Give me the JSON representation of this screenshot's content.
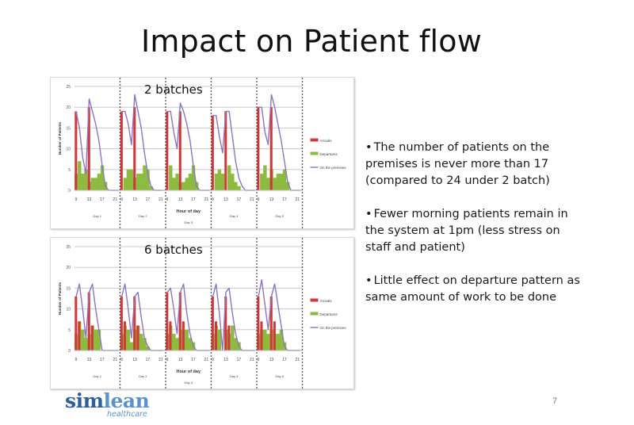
{
  "slide": {
    "title": "Impact on Patient flow",
    "page_number": "7",
    "bullets": [
      "The number of patients on the premises is never more than 17 (compared to 24 under 2 batch)",
      "Fewer morning patients remain in the system at 1pm (less stress on staff and patient)",
      "Little effect on departure pattern as same amount of work to be done"
    ],
    "logo": {
      "part1": "sim",
      "part2": "lean",
      "subtitle": "healthcare"
    }
  },
  "colors": {
    "arrivals": "#d0393b",
    "departures": "#8dbb3f",
    "premises": "#8c74c0",
    "grid": "#c8c8c8",
    "divider": "#555555"
  },
  "chart_data": [
    {
      "type": "bar",
      "title": "2 batches",
      "xlabel": "Hour of day",
      "ylabel": "Number of Patients",
      "ylim": [
        0,
        25
      ],
      "yticks": [
        0,
        5,
        10,
        15,
        20,
        25
      ],
      "grid": true,
      "legend_position": "right",
      "legend": [
        "Arrivals",
        "Departures",
        "On the premises"
      ],
      "days": [
        "Day 1",
        "Day 2",
        "Day 3",
        "Day 4",
        "Day 5"
      ],
      "hours": [
        9,
        10,
        11,
        12,
        13,
        14,
        15,
        16,
        17,
        18,
        19,
        20,
        21,
        22
      ],
      "xtick_labels": [
        "9",
        "13",
        "17",
        "21"
      ],
      "series": [
        {
          "name": "Arrivals",
          "kind": "bar",
          "values": [
            [
              19,
              0,
              0,
              0,
              20,
              0,
              0,
              0,
              0,
              0,
              0,
              0,
              0,
              0
            ],
            [
              19,
              0,
              0,
              0,
              20,
              0,
              0,
              0,
              0,
              0,
              0,
              0,
              0,
              0
            ],
            [
              19,
              0,
              0,
              0,
              19,
              0,
              0,
              0,
              0,
              0,
              0,
              0,
              0,
              0
            ],
            [
              18,
              0,
              0,
              0,
              19,
              0,
              0,
              0,
              0,
              0,
              0,
              0,
              0,
              0
            ],
            [
              20,
              0,
              0,
              0,
              20,
              0,
              0,
              0,
              0,
              0,
              0,
              0,
              0,
              0
            ]
          ]
        },
        {
          "name": "Departures",
          "kind": "bar",
          "values": [
            [
              4,
              7,
              4,
              5,
              2,
              3,
              3,
              4,
              6,
              2,
              0,
              0,
              0,
              0
            ],
            [
              0,
              3,
              5,
              5,
              3,
              4,
              4,
              6,
              5,
              1,
              0,
              0,
              0,
              0
            ],
            [
              0,
              6,
              3,
              4,
              2,
              2,
              3,
              4,
              6,
              2,
              0,
              0,
              0,
              0
            ],
            [
              0,
              4,
              5,
              4,
              0,
              6,
              4,
              2,
              1,
              0,
              0,
              0,
              0,
              0
            ],
            [
              0,
              4,
              6,
              3,
              5,
              3,
              4,
              4,
              5,
              2,
              0,
              0,
              0,
              0
            ]
          ]
        },
        {
          "name": "On the premises",
          "kind": "line",
          "values": [
            [
              19,
              15,
              8,
              4,
              22,
              19,
              16,
              12,
              6,
              1,
              0,
              0,
              0,
              0
            ],
            [
              19,
              19,
              16,
              11,
              23,
              19,
              15,
              9,
              4,
              1,
              0,
              0,
              0,
              0
            ],
            [
              19,
              19,
              14,
              10,
              21,
              19,
              16,
              12,
              6,
              1,
              0,
              0,
              0,
              0
            ],
            [
              18,
              18,
              13,
              9,
              19,
              19,
              13,
              7,
              3,
              1,
              0,
              0,
              0,
              0
            ],
            [
              20,
              20,
              14,
              11,
              23,
              20,
              16,
              12,
              7,
              2,
              0,
              0,
              0,
              0
            ]
          ]
        }
      ]
    },
    {
      "type": "bar",
      "title": "6 batches",
      "xlabel": "Hour of day",
      "ylabel": "Number of Patients",
      "ylim": [
        0,
        25
      ],
      "yticks": [
        0,
        5,
        10,
        15,
        20,
        25
      ],
      "grid": true,
      "legend_position": "right",
      "legend": [
        "Arrivals",
        "Departures",
        "On the premises"
      ],
      "days": [
        "Day 1",
        "Day 2",
        "Day 3",
        "Day 4",
        "Day 5"
      ],
      "hours": [
        9,
        10,
        11,
        12,
        13,
        14,
        15,
        16,
        17,
        18,
        19,
        20,
        21,
        22
      ],
      "xtick_labels": [
        "9",
        "13",
        "17",
        "21"
      ],
      "series": [
        {
          "name": "Arrivals",
          "kind": "bar",
          "values": [
            [
              13,
              7,
              0,
              0,
              14,
              6,
              0,
              0,
              0,
              0,
              0,
              0,
              0,
              0
            ],
            [
              13,
              7,
              0,
              0,
              13,
              6,
              0,
              0,
              0,
              0,
              0,
              0,
              0,
              0
            ],
            [
              14,
              7,
              0,
              0,
              14,
              7,
              0,
              0,
              0,
              0,
              0,
              0,
              0,
              0
            ],
            [
              13,
              7,
              0,
              0,
              13,
              6,
              0,
              0,
              0,
              0,
              0,
              0,
              0,
              0
            ],
            [
              13,
              7,
              0,
              0,
              13,
              7,
              0,
              0,
              0,
              0,
              0,
              0,
              0,
              0
            ]
          ]
        },
        {
          "name": "Departures",
          "kind": "bar",
          "values": [
            [
              4,
              7,
              5,
              3,
              4,
              6,
              5,
              5,
              0,
              0,
              0,
              0,
              0,
              0
            ],
            [
              4,
              6,
              5,
              2,
              5,
              6,
              4,
              3,
              1,
              0,
              0,
              0,
              0,
              0
            ],
            [
              4,
              6,
              4,
              3,
              5,
              5,
              5,
              3,
              2,
              0,
              0,
              0,
              0,
              0
            ],
            [
              4,
              6,
              5,
              0,
              5,
              4,
              6,
              3,
              2,
              0,
              0,
              0,
              0,
              0
            ],
            [
              4,
              5,
              5,
              4,
              5,
              4,
              4,
              5,
              2,
              0,
              0,
              0,
              0,
              0
            ]
          ]
        },
        {
          "name": "On the premises",
          "kind": "line",
          "values": [
            [
              13,
              16,
              10,
              3,
              14,
              16,
              10,
              5,
              0,
              0,
              0,
              0,
              0,
              0
            ],
            [
              13,
              16,
              10,
              3,
              13,
              14,
              8,
              3,
              1,
              0,
              0,
              0,
              0,
              0
            ],
            [
              14,
              15,
              10,
              4,
              14,
              16,
              9,
              4,
              1,
              0,
              0,
              0,
              0,
              0
            ],
            [
              13,
              16,
              9,
              0,
              14,
              15,
              9,
              4,
              1,
              0,
              0,
              0,
              0,
              0
            ],
            [
              13,
              17,
              11,
              5,
              13,
              16,
              11,
              6,
              1,
              0,
              0,
              0,
              0,
              0
            ]
          ]
        }
      ]
    }
  ]
}
